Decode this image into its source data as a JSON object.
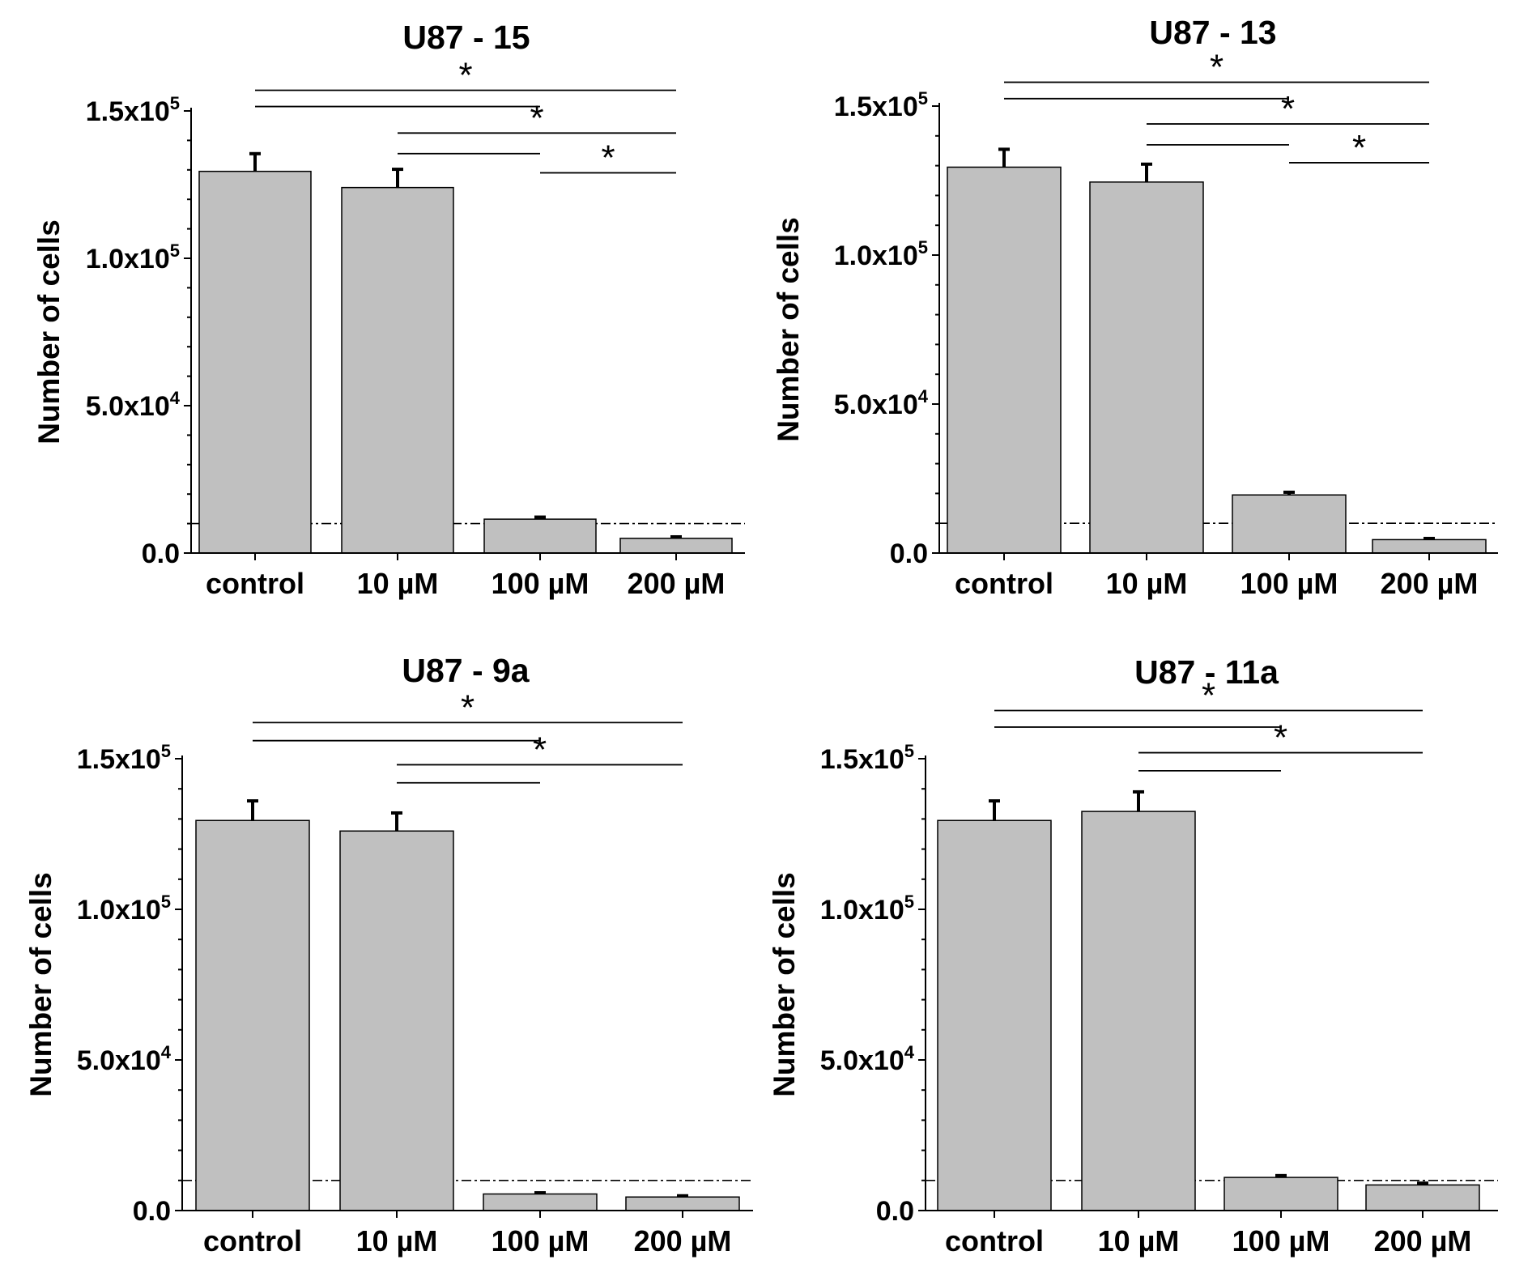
{
  "figure": {
    "bar_color": "#c0c0c0",
    "bar_edge_color": "#000000",
    "axis_color": "#000000"
  },
  "chart_data": [
    {
      "type": "bar",
      "title": "U87 - 15",
      "ylabel": "Number of cells",
      "categories": [
        "control",
        "10 µM",
        "100 µM",
        "200 µM"
      ],
      "values": [
        129500,
        124000,
        11500,
        5000
      ],
      "errors": [
        6000,
        6200,
        700,
        500
      ],
      "ylim": [
        0,
        150000
      ],
      "yticks": [
        {
          "value": 0,
          "mantissa": "0.0",
          "exponent": ""
        },
        {
          "value": 50000,
          "mantissa": "5.0x10",
          "exponent": "4"
        },
        {
          "value": 100000,
          "mantissa": "1.0x10",
          "exponent": "5"
        },
        {
          "value": 150000,
          "mantissa": "1.5x10",
          "exponent": "5"
        }
      ],
      "reference_line": 10000,
      "significance": [
        {
          "from": 0,
          "to": 3,
          "level": 157000,
          "label": "*"
        },
        {
          "from": 0,
          "to": 2,
          "level": 151500,
          "label": ""
        },
        {
          "from": 1,
          "to": 3,
          "level": 142500,
          "label": "*"
        },
        {
          "from": 1,
          "to": 2,
          "level": 135500,
          "label": ""
        },
        {
          "from": 2,
          "to": 3,
          "level": 129000,
          "label": "*"
        }
      ]
    },
    {
      "type": "bar",
      "title": "U87 - 13",
      "ylabel": "Number of cells",
      "categories": [
        "control",
        "10 µM",
        "100 µM",
        "200 µM"
      ],
      "values": [
        129500,
        124500,
        19500,
        4500
      ],
      "errors": [
        6000,
        6000,
        900,
        400
      ],
      "ylim": [
        0,
        150000
      ],
      "yticks": [
        {
          "value": 0,
          "mantissa": "0.0",
          "exponent": ""
        },
        {
          "value": 50000,
          "mantissa": "5.0x10",
          "exponent": "4"
        },
        {
          "value": 100000,
          "mantissa": "1.0x10",
          "exponent": "5"
        },
        {
          "value": 150000,
          "mantissa": "1.5x10",
          "exponent": "5"
        }
      ],
      "reference_line": 10000,
      "significance": [
        {
          "from": 0,
          "to": 3,
          "level": 158000,
          "label": "*"
        },
        {
          "from": 0,
          "to": 2,
          "level": 152500,
          "label": ""
        },
        {
          "from": 1,
          "to": 3,
          "level": 144000,
          "label": "*"
        },
        {
          "from": 1,
          "to": 2,
          "level": 137000,
          "label": ""
        },
        {
          "from": 2,
          "to": 3,
          "level": 131000,
          "label": "*"
        }
      ]
    },
    {
      "type": "bar",
      "title": "U87 - 9a",
      "ylabel": "Number of cells",
      "categories": [
        "control",
        "10 µM",
        "100 µM",
        "200 µM"
      ],
      "values": [
        129500,
        126000,
        5500,
        4500
      ],
      "errors": [
        6500,
        6000,
        400,
        400
      ],
      "ylim": [
        0,
        150000
      ],
      "yticks": [
        {
          "value": 0,
          "mantissa": "0.0",
          "exponent": ""
        },
        {
          "value": 50000,
          "mantissa": "5.0x10",
          "exponent": "4"
        },
        {
          "value": 100000,
          "mantissa": "1.0x10",
          "exponent": "5"
        },
        {
          "value": 150000,
          "mantissa": "1.5x10",
          "exponent": "5"
        }
      ],
      "reference_line": 10000,
      "significance": [
        {
          "from": 0,
          "to": 3,
          "level": 162000,
          "label": "*"
        },
        {
          "from": 0,
          "to": 2,
          "level": 156000,
          "label": ""
        },
        {
          "from": 1,
          "to": 3,
          "level": 148000,
          "label": "*"
        },
        {
          "from": 1,
          "to": 2,
          "level": 142000,
          "label": ""
        }
      ]
    },
    {
      "type": "bar",
      "title": "U87 - 11a",
      "ylabel": "Number of cells",
      "categories": [
        "control",
        "10 µM",
        "100 µM",
        "200 µM"
      ],
      "values": [
        129500,
        132500,
        11000,
        8500
      ],
      "errors": [
        6500,
        6500,
        600,
        600
      ],
      "ylim": [
        0,
        150000
      ],
      "yticks": [
        {
          "value": 0,
          "mantissa": "0.0",
          "exponent": ""
        },
        {
          "value": 50000,
          "mantissa": "5.0x10",
          "exponent": "4"
        },
        {
          "value": 100000,
          "mantissa": "1.0x10",
          "exponent": "5"
        },
        {
          "value": 150000,
          "mantissa": "1.5x10",
          "exponent": "5"
        }
      ],
      "reference_line": 10000,
      "significance": [
        {
          "from": 0,
          "to": 3,
          "level": 166000,
          "label": "*"
        },
        {
          "from": 0,
          "to": 2,
          "level": 160500,
          "label": ""
        },
        {
          "from": 1,
          "to": 3,
          "level": 152000,
          "label": "*"
        },
        {
          "from": 1,
          "to": 2,
          "level": 146000,
          "label": ""
        }
      ]
    }
  ]
}
